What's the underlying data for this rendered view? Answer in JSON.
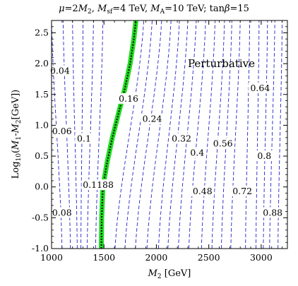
{
  "chart_data": {
    "type": "contour",
    "title": "μ=2M₂, M_sf=4 TeV, M_A=10 TeV; tanβ=15",
    "title_parts": {
      "mu": "μ",
      "eq1": "=2",
      "m2": "M",
      "m2sub": "2",
      "sep1": ", ",
      "msf": "M",
      "msfsub": "sf",
      "msfval": "=4 TeV, ",
      "ma": "M",
      "masub": "A",
      "maval": "=10 TeV; tan",
      "beta": "β",
      "tb": "=15"
    },
    "xlabel": "M₂ [GeV]",
    "xlabel_parts": {
      "m": "M",
      "sub": "2",
      "unit": " [GeV]"
    },
    "ylabel": "Log₁₀(M₁-M₂[GeV])",
    "ylabel_parts": {
      "log": "Log",
      "logsub": "10",
      "open": "(",
      "m1": "M",
      "m1sub": "1",
      "dash": "-",
      "m2": "M",
      "m2sub": "2",
      "unit": "[GeV])"
    },
    "xlim": [
      1000,
      3250
    ],
    "ylim": [
      -1.0,
      2.7
    ],
    "xticks": [
      "1000",
      "1500",
      "2000",
      "2500",
      "3000"
    ],
    "xtick_values": [
      1000,
      1500,
      2000,
      2500,
      3000
    ],
    "yticks": [
      "-1.0",
      "-0.5",
      "0.0",
      "0.5",
      "1.0",
      "1.5",
      "2.0",
      "2.5"
    ],
    "ytick_values": [
      -1.0,
      -0.5,
      0.0,
      0.5,
      1.0,
      1.5,
      2.0,
      2.5
    ],
    "region_label": {
      "text": "Perturbative",
      "x": 2620,
      "y": 2.0
    },
    "contour_color": "#2323c8",
    "band_color": "#22dd22",
    "contours": [
      {
        "label": "0.04",
        "bottom": 1100,
        "top": 1000,
        "lx": 1080,
        "ly": 1.88
      },
      {
        "label": "",
        "bottom": 1180,
        "top": 1110,
        "lx": null,
        "ly": null
      },
      {
        "label": "0.06",
        "bottom": 1245,
        "top": 1200,
        "lx": 1100,
        "ly": 0.9
      },
      {
        "label": "0.08",
        "bottom": 1280,
        "top": 1300,
        "lx": 1100,
        "ly": -0.42
      },
      {
        "label": "0.1",
        "bottom": 1340,
        "top": 1400,
        "lx": 1310,
        "ly": 0.78
      },
      {
        "label": "",
        "bottom": 1420,
        "top": 1490,
        "lx": null,
        "ly": null
      },
      {
        "label": "0.16",
        "bottom": 1605,
        "top": 1880,
        "lx": 1735,
        "ly": 1.43
      },
      {
        "label": "",
        "bottom": 1700,
        "top": 1960,
        "lx": null,
        "ly": null
      },
      {
        "label": "",
        "bottom": 1800,
        "top": 2050,
        "lx": null,
        "ly": null
      },
      {
        "label": "0.24",
        "bottom": 1910,
        "top": 2140,
        "lx": 1960,
        "ly": 1.1
      },
      {
        "label": "",
        "bottom": 2020,
        "top": 2220,
        "lx": null,
        "ly": null
      },
      {
        "label": "",
        "bottom": 2110,
        "top": 2300,
        "lx": null,
        "ly": null
      },
      {
        "label": "0.32",
        "bottom": 2210,
        "top": 2380,
        "lx": 2240,
        "ly": 0.78
      },
      {
        "label": "0.4",
        "bottom": 2310,
        "top": 2470,
        "lx": 2390,
        "ly": 0.55
      },
      {
        "label": "0.48",
        "bottom": 2430,
        "top": 2560,
        "lx": 2440,
        "ly": -0.07
      },
      {
        "label": "",
        "bottom": 2530,
        "top": 2650,
        "lx": null,
        "ly": null
      },
      {
        "label": "0.56",
        "bottom": 2620,
        "top": 2720,
        "lx": 2635,
        "ly": 0.7
      },
      {
        "label": "",
        "bottom": 2710,
        "top": 2800,
        "lx": null,
        "ly": null
      },
      {
        "label": "0.72",
        "bottom": 2850,
        "top": 2890,
        "lx": 2820,
        "ly": -0.07
      },
      {
        "label": "",
        "bottom": 2950,
        "top": 2980,
        "lx": null,
        "ly": null
      },
      {
        "label": "0.64",
        "bottom": 3020,
        "top": 3060,
        "lx": 2990,
        "ly": 1.6
      },
      {
        "label": "0.8",
        "bottom": 3080,
        "top": 3130,
        "lx": 3030,
        "ly": 0.5
      },
      {
        "label": "0.88",
        "bottom": 3160,
        "top": 3200,
        "lx": 3110,
        "ly": -0.42
      }
    ],
    "band": {
      "label": "0.1188",
      "label_x": 1445,
      "label_y": 0.03,
      "points": [
        [
          1475,
          -1.0
        ],
        [
          1478,
          -0.5
        ],
        [
          1490,
          0.0
        ],
        [
          1530,
          0.4
        ],
        [
          1580,
          0.8
        ],
        [
          1640,
          1.2
        ],
        [
          1700,
          1.6
        ],
        [
          1750,
          2.0
        ],
        [
          1785,
          2.4
        ],
        [
          1805,
          2.7
        ]
      ]
    }
  }
}
